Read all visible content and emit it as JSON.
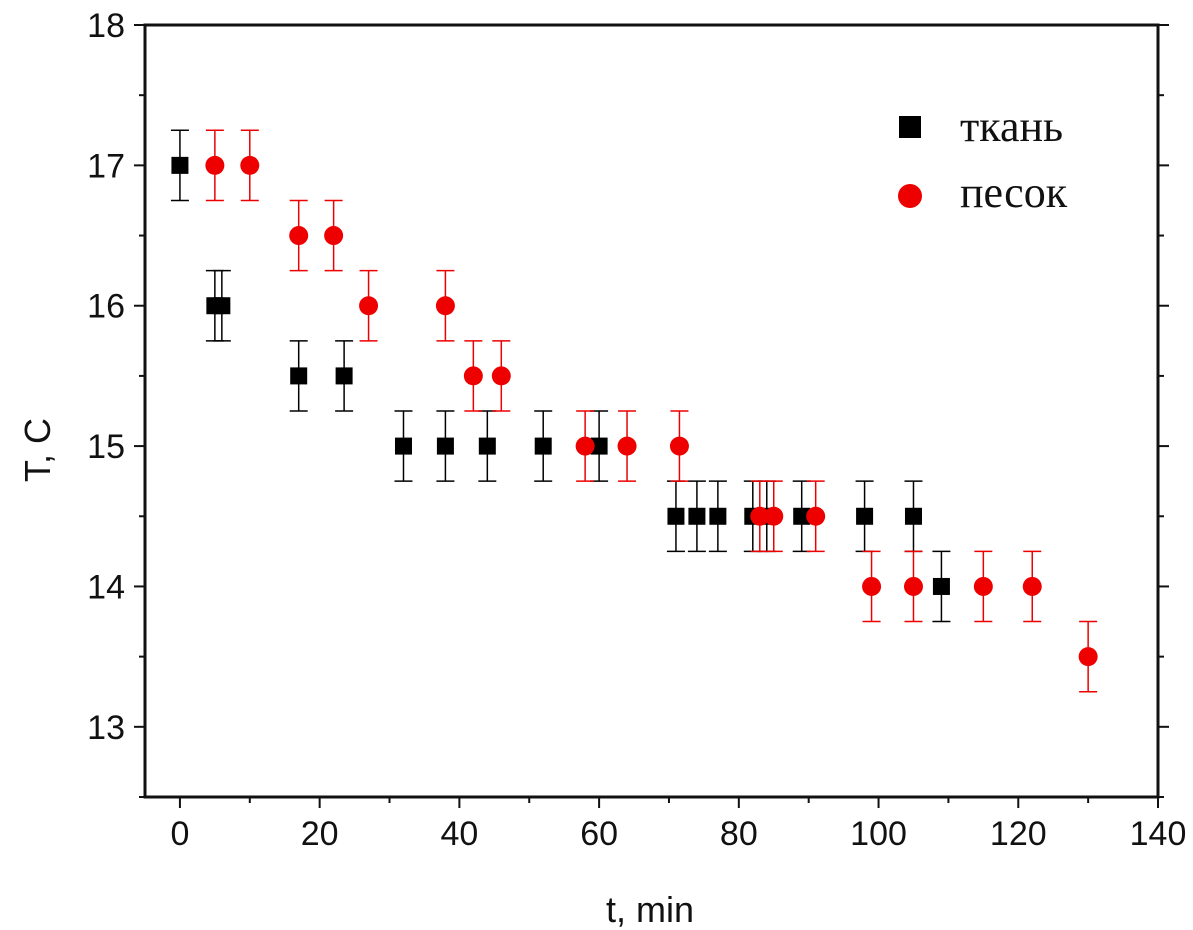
{
  "chart_data": {
    "type": "scatter",
    "xlabel": "t, min",
    "ylabel": "T, C",
    "xlim": [
      -5,
      140
    ],
    "ylim": [
      12.5,
      18
    ],
    "x_ticks": [
      0,
      20,
      40,
      60,
      80,
      100,
      120,
      140
    ],
    "y_ticks": [
      13,
      14,
      15,
      16,
      17,
      18
    ],
    "x_tick_labels": [
      "0",
      "20",
      "40",
      "60",
      "80",
      "100",
      "120",
      "140"
    ],
    "y_tick_labels": [
      "13",
      "14",
      "15",
      "16",
      "17",
      "18"
    ],
    "grid": false,
    "legend_position": "top-right",
    "series": [
      {
        "name": "ткань",
        "marker": "square",
        "color": "#000000",
        "error": 0.25,
        "x": [
          0,
          5,
          6,
          17,
          23.5,
          32,
          38,
          44,
          52,
          60,
          71,
          74,
          77,
          82,
          84,
          89,
          98,
          105,
          109
        ],
        "y": [
          17,
          16,
          16,
          15.5,
          15.5,
          15,
          15,
          15,
          15,
          15,
          14.5,
          14.5,
          14.5,
          14.5,
          14.5,
          14.5,
          14.5,
          14.5,
          14
        ]
      },
      {
        "name": "песок",
        "marker": "circle",
        "color": "#ee0000",
        "error": 0.25,
        "x": [
          5,
          10,
          17,
          22,
          27,
          38,
          42,
          46,
          58,
          64,
          71.5,
          83,
          85,
          91,
          99,
          105,
          115,
          122,
          130
        ],
        "y": [
          17,
          17,
          16.5,
          16.5,
          16,
          16,
          15.5,
          15.5,
          15,
          15,
          15,
          14.5,
          14.5,
          14.5,
          14,
          14,
          14,
          14,
          13.5
        ]
      }
    ]
  }
}
